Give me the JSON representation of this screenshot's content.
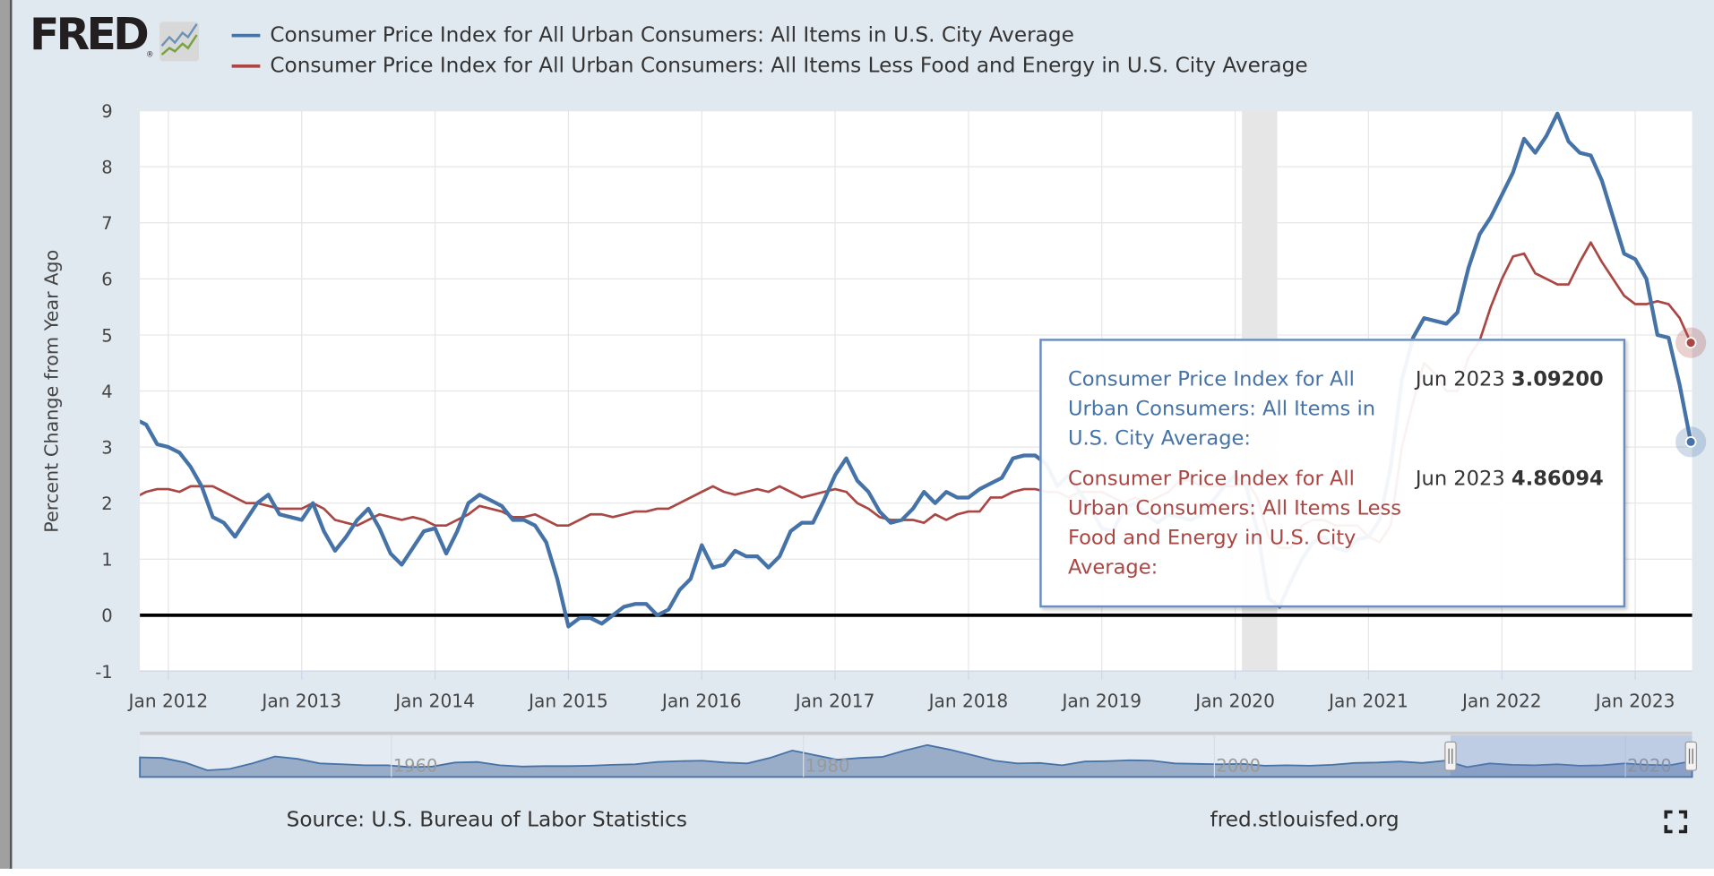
{
  "logo": {
    "text": "FRED",
    "icon": "line-chart-icon"
  },
  "legend": [
    {
      "label": "Consumer Price Index for All Urban Consumers: All Items in U.S. City Average",
      "color": "#4572a7"
    },
    {
      "label": "Consumer Price Index for All Urban Consumers: All Items Less Food and Energy in U.S. City Average",
      "color": "#aa4643"
    }
  ],
  "tooltip": {
    "rows": [
      {
        "name": "Consumer Price Index for All Urban Consumers: All Items in U.S. City Average:",
        "date": "Jun 2023",
        "value": "3.09200",
        "color": "#4572a7"
      },
      {
        "name": "Consumer Price Index for All Urban Consumers: All Items Less Food and Energy in U.S. City Average:",
        "date": "Jun 2023",
        "value": "4.86094",
        "color": "#aa4643"
      }
    ]
  },
  "footer": {
    "source": "Source: U.S. Bureau of Labor Statistics",
    "site": "fred.stlouisfed.org",
    "fullscreen_icon": "fullscreen-icon"
  },
  "navigator": {
    "labels": [
      "1960",
      "1980",
      "2000",
      "2020"
    ]
  },
  "chart_data": {
    "type": "line",
    "ylabel": "Percent Change from Year Ago",
    "ylim": [
      -1,
      9
    ],
    "yticks": [
      "-1",
      "0",
      "1",
      "2",
      "3",
      "4",
      "5",
      "6",
      "7",
      "8",
      "9"
    ],
    "xticks": [
      "Jan 2012",
      "Jan 2013",
      "Jan 2014",
      "Jan 2015",
      "Jan 2016",
      "Jan 2017",
      "Jan 2018",
      "Jan 2019",
      "Jan 2020",
      "Jan 2021",
      "Jan 2022",
      "Jan 2023"
    ],
    "xlim": [
      "2011-10",
      "2023-06"
    ],
    "grid": true,
    "recession_shading": [
      "2020-02",
      "2020-04"
    ],
    "x": [
      "2011-10",
      "2011-11",
      "2011-12",
      "2012-01",
      "2012-02",
      "2012-03",
      "2012-04",
      "2012-05",
      "2012-06",
      "2012-07",
      "2012-08",
      "2012-09",
      "2012-10",
      "2012-11",
      "2012-12",
      "2013-01",
      "2013-02",
      "2013-03",
      "2013-04",
      "2013-05",
      "2013-06",
      "2013-07",
      "2013-08",
      "2013-09",
      "2013-10",
      "2013-11",
      "2013-12",
      "2014-01",
      "2014-02",
      "2014-03",
      "2014-04",
      "2014-05",
      "2014-06",
      "2014-07",
      "2014-08",
      "2014-09",
      "2014-10",
      "2014-11",
      "2014-12",
      "2015-01",
      "2015-02",
      "2015-03",
      "2015-04",
      "2015-05",
      "2015-06",
      "2015-07",
      "2015-08",
      "2015-09",
      "2015-10",
      "2015-11",
      "2015-12",
      "2016-01",
      "2016-02",
      "2016-03",
      "2016-04",
      "2016-05",
      "2016-06",
      "2016-07",
      "2016-08",
      "2016-09",
      "2016-10",
      "2016-11",
      "2016-12",
      "2017-01",
      "2017-02",
      "2017-03",
      "2017-04",
      "2017-05",
      "2017-06",
      "2017-07",
      "2017-08",
      "2017-09",
      "2017-10",
      "2017-11",
      "2017-12",
      "2018-01",
      "2018-02",
      "2018-03",
      "2018-04",
      "2018-05",
      "2018-06",
      "2018-07",
      "2018-08",
      "2018-09",
      "2018-10",
      "2018-11",
      "2018-12",
      "2019-01",
      "2019-02",
      "2019-03",
      "2019-04",
      "2019-05",
      "2019-06",
      "2019-07",
      "2019-08",
      "2019-09",
      "2019-10",
      "2019-11",
      "2019-12",
      "2020-01",
      "2020-02",
      "2020-03",
      "2020-04",
      "2020-05",
      "2020-06",
      "2020-07",
      "2020-08",
      "2020-09",
      "2020-10",
      "2020-11",
      "2020-12",
      "2021-01",
      "2021-02",
      "2021-03",
      "2021-04",
      "2021-05",
      "2021-06",
      "2021-07",
      "2021-08",
      "2021-09",
      "2021-10",
      "2021-11",
      "2021-12",
      "2022-01",
      "2022-02",
      "2022-03",
      "2022-04",
      "2022-05",
      "2022-06",
      "2022-07",
      "2022-08",
      "2022-09",
      "2022-10",
      "2022-11",
      "2022-12",
      "2023-01",
      "2023-02",
      "2023-03",
      "2023-04",
      "2023-05",
      "2023-06"
    ],
    "series": [
      {
        "name": "Consumer Price Index for All Urban Consumers: All Items in U.S. City Average",
        "color": "#4572a7",
        "values": [
          3.5,
          3.4,
          3.05,
          3.0,
          2.9,
          2.65,
          2.3,
          1.75,
          1.65,
          1.4,
          1.7,
          2.0,
          2.15,
          1.8,
          1.75,
          1.7,
          2.0,
          1.5,
          1.15,
          1.4,
          1.7,
          1.9,
          1.55,
          1.1,
          0.9,
          1.2,
          1.5,
          1.55,
          1.1,
          1.5,
          2.0,
          2.15,
          2.05,
          1.95,
          1.7,
          1.7,
          1.6,
          1.3,
          0.65,
          -0.2,
          -0.05,
          -0.05,
          -0.15,
          0.0,
          0.15,
          0.2,
          0.2,
          0.0,
          0.1,
          0.45,
          0.65,
          1.25,
          0.85,
          0.9,
          1.15,
          1.05,
          1.05,
          0.85,
          1.05,
          1.5,
          1.65,
          1.65,
          2.05,
          2.5,
          2.8,
          2.4,
          2.2,
          1.85,
          1.65,
          1.7,
          1.9,
          2.2,
          2.0,
          2.2,
          2.1,
          2.1,
          2.25,
          2.35,
          2.45,
          2.8,
          2.85,
          2.85,
          2.7,
          2.3,
          2.5,
          2.2,
          1.9,
          1.55,
          1.5,
          1.9,
          2.0,
          1.8,
          1.65,
          1.8,
          1.75,
          1.7,
          1.8,
          2.05,
          2.3,
          2.5,
          2.3,
          1.5,
          0.3,
          0.15,
          0.6,
          1.0,
          1.3,
          1.4,
          1.2,
          1.15,
          1.35,
          1.4,
          1.7,
          2.65,
          4.2,
          4.95,
          5.3,
          5.25,
          5.2,
          5.4,
          6.2,
          6.8,
          7.1,
          7.5,
          7.9,
          8.5,
          8.25,
          8.55,
          8.95,
          8.45,
          8.25,
          8.2,
          7.75,
          7.1,
          6.45,
          6.35,
          6.0,
          5.0,
          4.95,
          4.1,
          3.092
        ]
      },
      {
        "name": "Consumer Price Index for All Urban Consumers: All Items Less Food and Energy in U.S. City Average",
        "color": "#aa4643",
        "values": [
          2.1,
          2.2,
          2.25,
          2.25,
          2.2,
          2.3,
          2.3,
          2.3,
          2.2,
          2.1,
          2.0,
          2.0,
          1.95,
          1.9,
          1.9,
          1.9,
          2.0,
          1.9,
          1.7,
          1.65,
          1.6,
          1.7,
          1.8,
          1.75,
          1.7,
          1.75,
          1.7,
          1.6,
          1.6,
          1.7,
          1.8,
          1.95,
          1.9,
          1.85,
          1.75,
          1.75,
          1.8,
          1.7,
          1.6,
          1.6,
          1.7,
          1.8,
          1.8,
          1.75,
          1.8,
          1.85,
          1.85,
          1.9,
          1.9,
          2.0,
          2.1,
          2.2,
          2.3,
          2.2,
          2.15,
          2.2,
          2.25,
          2.2,
          2.3,
          2.2,
          2.1,
          2.15,
          2.2,
          2.25,
          2.2,
          2.0,
          1.9,
          1.75,
          1.7,
          1.7,
          1.7,
          1.65,
          1.8,
          1.7,
          1.8,
          1.85,
          1.85,
          2.1,
          2.1,
          2.2,
          2.25,
          2.25,
          2.2,
          2.2,
          2.1,
          2.2,
          2.2,
          2.2,
          2.1,
          2.0,
          2.1,
          2.0,
          2.1,
          2.2,
          2.4,
          2.4,
          2.3,
          2.3,
          2.3,
          2.3,
          2.4,
          2.1,
          1.4,
          1.2,
          1.2,
          1.6,
          1.7,
          1.7,
          1.6,
          1.6,
          1.6,
          1.4,
          1.3,
          1.6,
          3.0,
          3.8,
          4.5,
          4.3,
          4.0,
          4.0,
          4.6,
          4.9,
          5.5,
          6.0,
          6.4,
          6.45,
          6.1,
          6.0,
          5.9,
          5.9,
          6.3,
          6.65,
          6.3,
          6.0,
          5.7,
          5.55,
          5.55,
          5.6,
          5.55,
          5.3,
          4.86094
        ]
      }
    ]
  }
}
